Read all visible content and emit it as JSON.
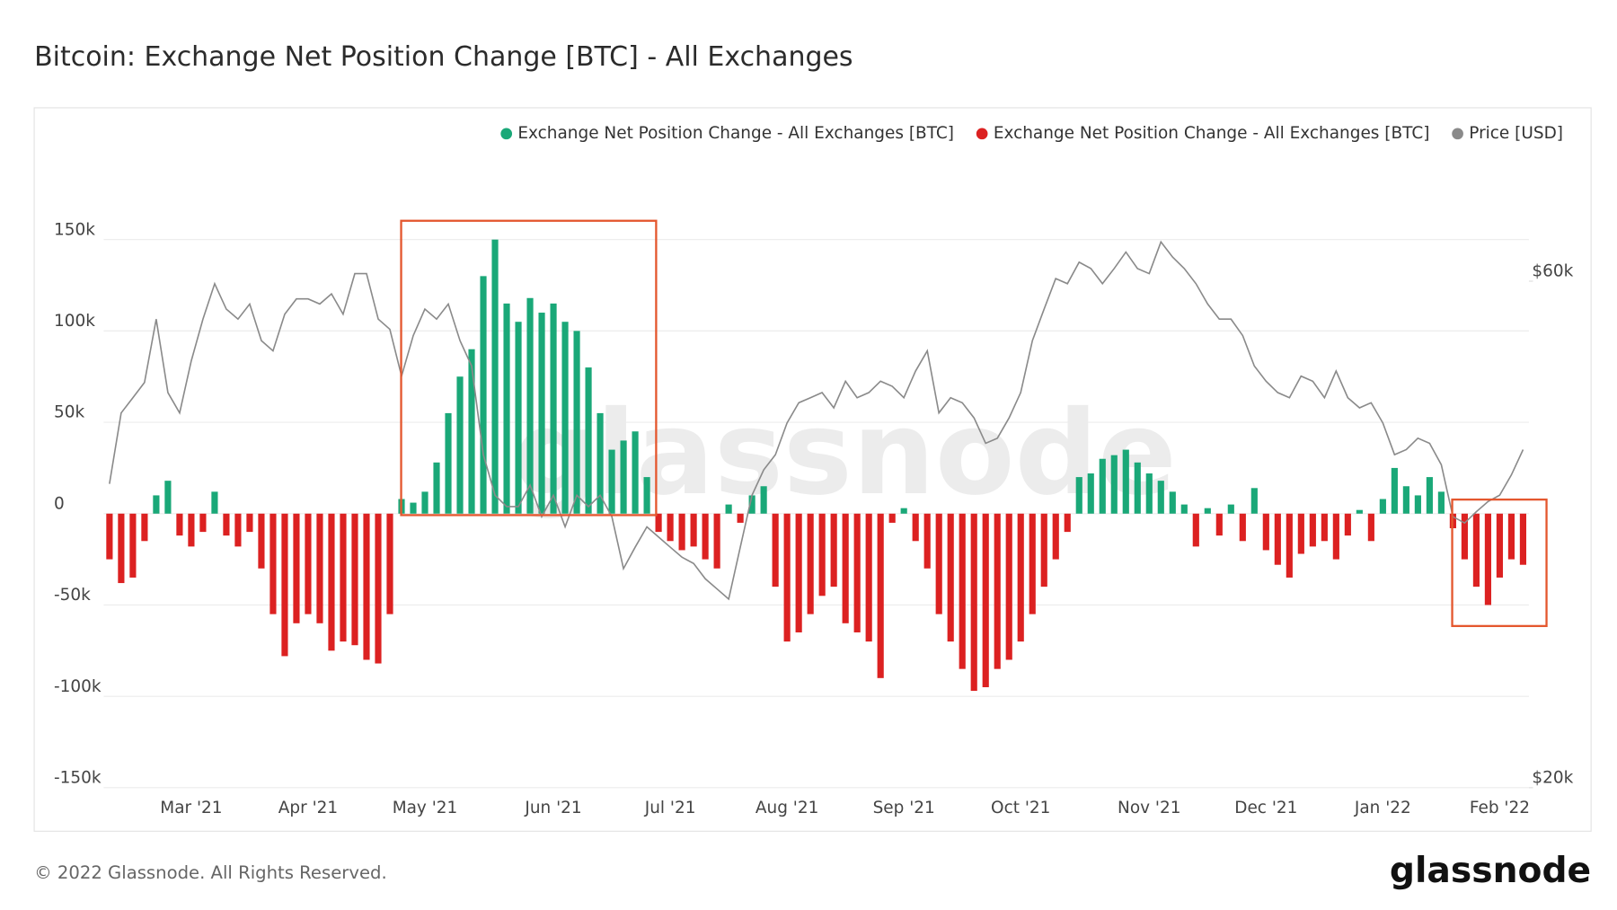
{
  "chart_data": {
    "type": "bar",
    "title": "Bitcoin: Exchange Net Position Change [BTC] - All Exchanges",
    "watermark": "glassnode",
    "footer": "© 2022 Glassnode. All Rights Reserved.",
    "logo": "glassnode",
    "categories": [
      null,
      null,
      null,
      null,
      null,
      null,
      null,
      "Mar '21",
      null,
      null,
      null,
      null,
      null,
      null,
      null,
      null,
      null,
      "Apr '21",
      null,
      null,
      null,
      null,
      null,
      null,
      null,
      null,
      null,
      "May '21",
      null,
      null,
      null,
      null,
      null,
      null,
      null,
      null,
      null,
      null,
      "Jun '21",
      null,
      null,
      null,
      null,
      null,
      null,
      null,
      null,
      null,
      "Jul '21",
      null,
      null,
      null,
      null,
      null,
      null,
      null,
      null,
      null,
      "Aug '21",
      null,
      null,
      null,
      null,
      null,
      null,
      null,
      null,
      null,
      "Sep '21",
      null,
      null,
      null,
      null,
      null,
      null,
      null,
      null,
      null,
      "Oct '21",
      null,
      null,
      null,
      null,
      null,
      null,
      null,
      null,
      null,
      null,
      "Nov '21",
      null,
      null,
      null,
      null,
      null,
      null,
      null,
      null,
      null,
      "Dec '21",
      null,
      null,
      null,
      null,
      null,
      null,
      null,
      null,
      null,
      "Jan '22",
      null,
      null,
      null,
      null,
      null,
      null,
      null,
      null,
      null,
      "Feb '22",
      null,
      null
    ],
    "series": [
      {
        "name": "Exchange Net Position Change - All Exchanges [BTC]",
        "color": "#1aa878",
        "values": [
          null,
          null,
          null,
          null,
          10000,
          18000,
          null,
          null,
          null,
          12000,
          null,
          null,
          null,
          null,
          null,
          null,
          null,
          null,
          null,
          null,
          null,
          null,
          null,
          null,
          null,
          8000,
          6000,
          12000,
          28000,
          55000,
          75000,
          90000,
          130000,
          150000,
          115000,
          105000,
          118000,
          110000,
          115000,
          105000,
          100000,
          80000,
          55000,
          35000,
          40000,
          45000,
          20000,
          null,
          null,
          null,
          null,
          null,
          null,
          5000,
          null,
          10000,
          15000,
          null,
          null,
          null,
          null,
          null,
          null,
          null,
          null,
          null,
          null,
          null,
          3000,
          null,
          null,
          null,
          null,
          null,
          null,
          null,
          null,
          null,
          null,
          null,
          null,
          null,
          null,
          20000,
          22000,
          30000,
          32000,
          35000,
          28000,
          22000,
          18000,
          12000,
          5000,
          null,
          3000,
          null,
          5000,
          null,
          14000,
          null,
          null,
          null,
          null,
          null,
          null,
          null,
          null,
          2000,
          null,
          8000,
          25000,
          15000,
          10000,
          20000,
          12000,
          null,
          null,
          null,
          null,
          null,
          null,
          null
        ]
      },
      {
        "name": "Exchange Net Position Change - All Exchanges [BTC]",
        "color": "#dc2121",
        "values": [
          -25000,
          -38000,
          -35000,
          -15000,
          null,
          null,
          -12000,
          -18000,
          -10000,
          null,
          -12000,
          -18000,
          -10000,
          -30000,
          -55000,
          -78000,
          -60000,
          -55000,
          -60000,
          -75000,
          -70000,
          -72000,
          -80000,
          -82000,
          -55000,
          null,
          null,
          null,
          null,
          null,
          null,
          null,
          null,
          null,
          null,
          null,
          null,
          null,
          null,
          null,
          null,
          null,
          null,
          null,
          null,
          null,
          null,
          -10000,
          -15000,
          -20000,
          -18000,
          -25000,
          -30000,
          null,
          -5000,
          null,
          null,
          -40000,
          -70000,
          -65000,
          -55000,
          -45000,
          -40000,
          -60000,
          -65000,
          -70000,
          -90000,
          -5000,
          null,
          -15000,
          -30000,
          -55000,
          -70000,
          -85000,
          -97000,
          -95000,
          -85000,
          -80000,
          -70000,
          -55000,
          -40000,
          -25000,
          -10000,
          null,
          null,
          null,
          null,
          null,
          null,
          null,
          null,
          null,
          null,
          -18000,
          null,
          -12000,
          null,
          -15000,
          null,
          -20000,
          -28000,
          -35000,
          -22000,
          -18000,
          -15000,
          -25000,
          -12000,
          null,
          -15000,
          null,
          null,
          null,
          null,
          null,
          null,
          -8000,
          -25000,
          -40000,
          -50000,
          -35000,
          -25000,
          -28000
        ]
      },
      {
        "name": "Price [USD]",
        "color": "#8a8a8a",
        "axis": "y2",
        "values": [
          44000,
          49600,
          50800,
          52000,
          57000,
          51200,
          49600,
          53700,
          57000,
          59800,
          57800,
          57000,
          58200,
          55300,
          54500,
          57400,
          58600,
          58600,
          58200,
          59000,
          57400,
          60600,
          60600,
          57000,
          56200,
          52500,
          55700,
          57800,
          57000,
          58200,
          55300,
          53300,
          46300,
          43100,
          42200,
          42200,
          43900,
          41400,
          43100,
          40600,
          43100,
          42200,
          43100,
          41400,
          37300,
          39000,
          40600,
          39800,
          39000,
          38200,
          37700,
          36500,
          35700,
          34900,
          39000,
          43100,
          45100,
          46300,
          48800,
          50400,
          50800,
          51200,
          50000,
          52100,
          50800,
          51200,
          52100,
          51700,
          50800,
          52900,
          54500,
          49600,
          50800,
          50400,
          49200,
          47200,
          47600,
          49200,
          51200,
          55300,
          57800,
          60200,
          59800,
          61500,
          61000,
          59800,
          61000,
          62300,
          61000,
          60600,
          63100,
          61900,
          61000,
          59800,
          58200,
          57000,
          57000,
          55700,
          53300,
          52100,
          51200,
          50800,
          52500,
          52100,
          50800,
          52900,
          50800,
          50000,
          50400,
          48800,
          46300,
          46700,
          47600,
          47200,
          45500,
          41400,
          40900,
          41800,
          42600,
          43100,
          44700,
          46700
        ]
      }
    ],
    "ylim": [
      -150000,
      200000
    ],
    "yticks": [
      {
        "value": -150000,
        "label": "-150k"
      },
      {
        "value": -100000,
        "label": "-100k"
      },
      {
        "value": -50000,
        "label": "-50k"
      },
      0,
      {
        "value": 50000,
        "label": "50k"
      },
      {
        "value": 100000,
        "label": "100k"
      },
      {
        "value": 150000,
        "label": "150k"
      }
    ],
    "y2lim": [
      20000,
      70500
    ],
    "y2ticks": [
      {
        "value": 20000,
        "label": "$20k"
      },
      {
        "value": 60000,
        "label": "$60k"
      }
    ],
    "grid": true,
    "legend": "top-right"
  }
}
